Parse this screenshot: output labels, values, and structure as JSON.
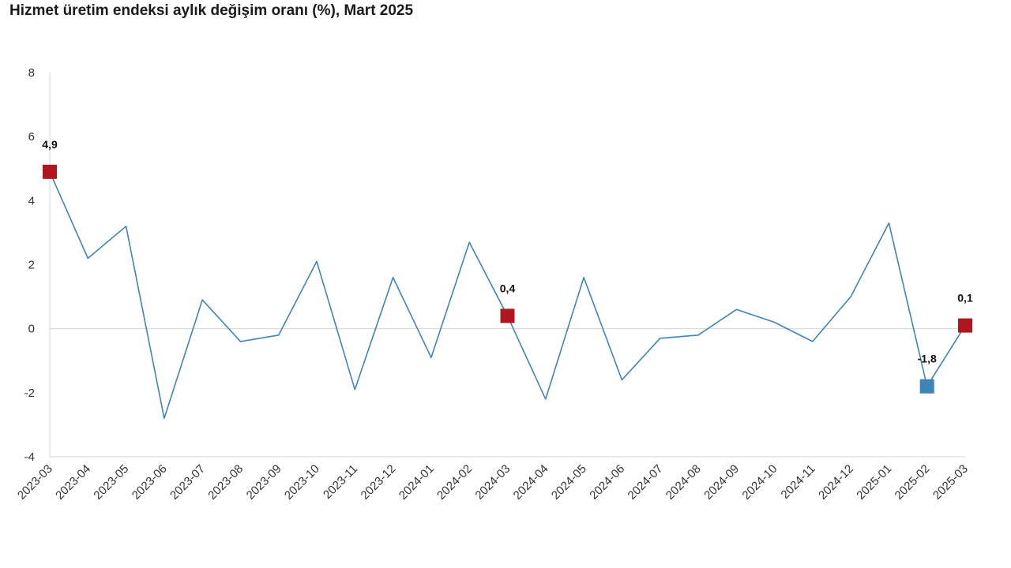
{
  "chart_data": {
    "type": "line",
    "title": "Hizmet üretim endeksi aylık değişim oranı (%), Mart 2025",
    "xlabel": "",
    "ylabel": "",
    "categories": [
      "2023-03",
      "2023-04",
      "2023-05",
      "2023-06",
      "2023-07",
      "2023-08",
      "2023-09",
      "2023-10",
      "2023-11",
      "2023-12",
      "2024-01",
      "2024-02",
      "2024-03",
      "2024-04",
      "2024-05",
      "2024-06",
      "2024-07",
      "2024-08",
      "2024-09",
      "2024-10",
      "2024-11",
      "2024-12",
      "2025-01",
      "2025-02",
      "2025-03"
    ],
    "series": [
      {
        "values": [
          4.9,
          2.2,
          3.2,
          -2.8,
          0.9,
          -0.4,
          -0.2,
          2.1,
          -1.9,
          1.6,
          -0.9,
          2.7,
          0.4,
          -2.2,
          1.6,
          -1.6,
          -0.3,
          -0.2,
          0.6,
          0.2,
          -0.4,
          1.0,
          3.3,
          -1.8,
          0.1
        ],
        "color": "#3d85b8"
      }
    ],
    "ylim": [
      -4,
      8
    ],
    "yticks": [
      -4,
      -2,
      0,
      2,
      4,
      6,
      8
    ],
    "grid": false,
    "legend": "none",
    "highlighted_points": [
      {
        "category": "2023-03",
        "value": 4.9,
        "label": "4,9",
        "color": "#b0161f"
      },
      {
        "category": "2024-03",
        "value": 0.4,
        "label": "0,4",
        "color": "#b0161f"
      },
      {
        "category": "2025-02",
        "value": -1.8,
        "label": "-1,8",
        "color": "#3d85b8"
      },
      {
        "category": "2025-03",
        "value": 0.1,
        "label": "0,1",
        "color": "#b0161f"
      }
    ]
  }
}
